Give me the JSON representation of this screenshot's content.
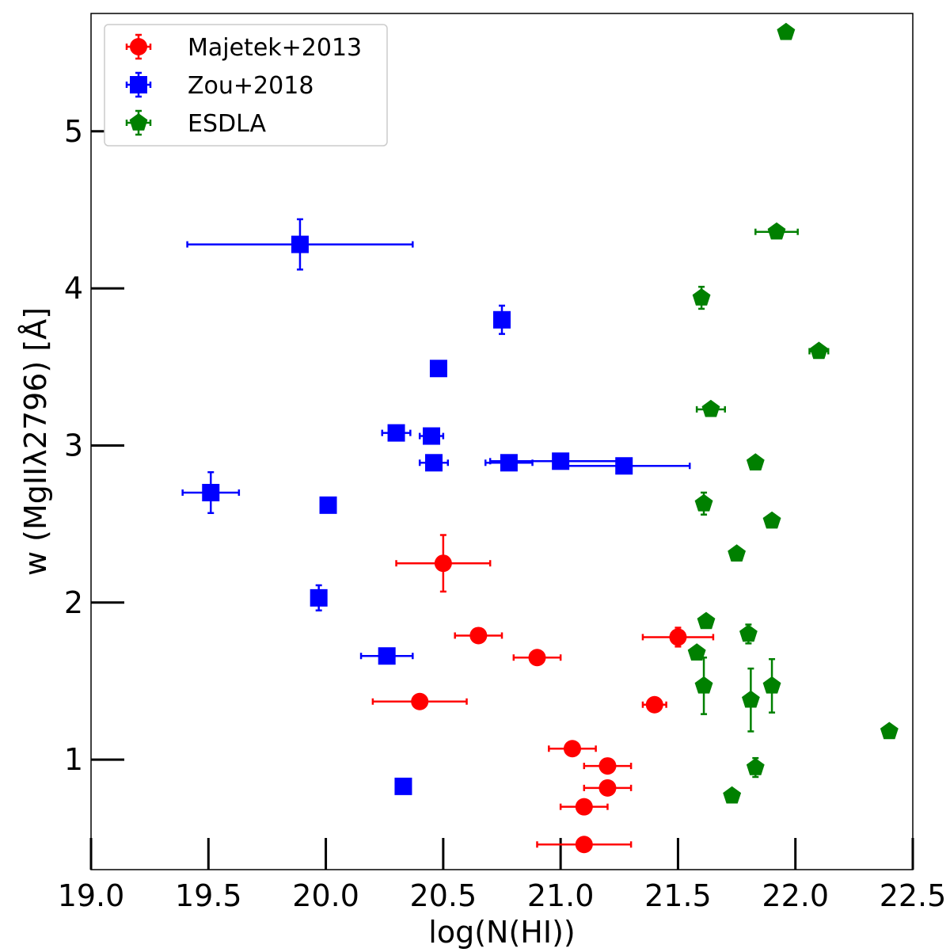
{
  "chart_data": {
    "type": "scatter",
    "title": "",
    "xlabel": "log(N(HI))",
    "ylabel": "w (MgIIλ2796) [Å]",
    "xlim": [
      19.0,
      22.5
    ],
    "ylim": [
      0.3,
      5.75
    ],
    "xticks": [
      "19.0",
      "19.5",
      "20.0",
      "20.5",
      "21.0",
      "21.5",
      "22.0",
      "22.5"
    ],
    "yticks": [
      "1",
      "2",
      "3",
      "4",
      "5"
    ],
    "grid": false,
    "legend_position": "top-left",
    "series": [
      {
        "name": "Majetek+2013",
        "color": "#ff0000",
        "marker": "circle",
        "points": [
          {
            "x": 20.5,
            "y": 2.25,
            "xerr": 0.2,
            "yerr": 0.18
          },
          {
            "x": 20.65,
            "y": 1.79,
            "xerr": 0.1,
            "yerr": 0.0
          },
          {
            "x": 20.9,
            "y": 1.65,
            "xerr": 0.1,
            "yerr": 0.04
          },
          {
            "x": 20.4,
            "y": 1.37,
            "xerr": 0.2,
            "yerr": 0.0
          },
          {
            "x": 21.5,
            "y": 1.78,
            "xerr": 0.15,
            "yerr": 0.06
          },
          {
            "x": 21.4,
            "y": 1.35,
            "xerr": 0.05,
            "yerr": 0.0
          },
          {
            "x": 21.05,
            "y": 1.07,
            "xerr": 0.1,
            "yerr": 0.0
          },
          {
            "x": 21.2,
            "y": 0.96,
            "xerr": 0.1,
            "yerr": 0.0
          },
          {
            "x": 21.2,
            "y": 0.82,
            "xerr": 0.1,
            "yerr": 0.0
          },
          {
            "x": 21.1,
            "y": 0.7,
            "xerr": 0.1,
            "yerr": 0.0
          },
          {
            "x": 21.1,
            "y": 0.46,
            "xerr": 0.2,
            "yerr": 0.0
          }
        ]
      },
      {
        "name": "Zou+2018",
        "color": "#0000ff",
        "marker": "square",
        "points": [
          {
            "x": 19.89,
            "y": 4.28,
            "xerr": 0.48,
            "yerr": 0.16
          },
          {
            "x": 20.75,
            "y": 3.8,
            "xerr": 0.0,
            "yerr": 0.09
          },
          {
            "x": 20.48,
            "y": 3.49,
            "xerr": 0.0,
            "yerr": 0.0
          },
          {
            "x": 20.3,
            "y": 3.08,
            "xerr": 0.06,
            "yerr": 0.0
          },
          {
            "x": 20.45,
            "y": 3.06,
            "xerr": 0.05,
            "yerr": 0.0
          },
          {
            "x": 20.46,
            "y": 2.89,
            "xerr": 0.06,
            "yerr": 0.0
          },
          {
            "x": 20.78,
            "y": 2.89,
            "xerr": 0.1,
            "yerr": 0.0
          },
          {
            "x": 21.0,
            "y": 2.9,
            "xerr": 0.3,
            "yerr": 0.0
          },
          {
            "x": 21.27,
            "y": 2.87,
            "xerr": 0.28,
            "yerr": 0.0
          },
          {
            "x": 19.51,
            "y": 2.7,
            "xerr": 0.12,
            "yerr": 0.13
          },
          {
            "x": 20.01,
            "y": 2.62,
            "xerr": 0.0,
            "yerr": 0.0
          },
          {
            "x": 19.97,
            "y": 2.03,
            "xerr": 0.0,
            "yerr": 0.08
          },
          {
            "x": 20.26,
            "y": 1.66,
            "xerr": 0.11,
            "yerr": 0.0
          },
          {
            "x": 20.33,
            "y": 0.83,
            "xerr": 0.0,
            "yerr": 0.0
          }
        ]
      },
      {
        "name": "ESDLA",
        "color": "#008000",
        "marker": "pentagon",
        "points": [
          {
            "x": 21.96,
            "y": 5.63,
            "xerr": 0.0,
            "yerr": 0.0
          },
          {
            "x": 21.92,
            "y": 4.36,
            "xerr": 0.09,
            "yerr": 0.0
          },
          {
            "x": 21.6,
            "y": 3.94,
            "xerr": 0.0,
            "yerr": 0.07
          },
          {
            "x": 22.1,
            "y": 3.6,
            "xerr": 0.04,
            "yerr": 0.0
          },
          {
            "x": 21.64,
            "y": 3.23,
            "xerr": 0.06,
            "yerr": 0.0
          },
          {
            "x": 21.83,
            "y": 2.89,
            "xerr": 0.0,
            "yerr": 0.0
          },
          {
            "x": 21.61,
            "y": 2.63,
            "xerr": 0.0,
            "yerr": 0.07
          },
          {
            "x": 21.9,
            "y": 2.52,
            "xerr": 0.0,
            "yerr": 0.0
          },
          {
            "x": 21.75,
            "y": 2.31,
            "xerr": 0.0,
            "yerr": 0.0
          },
          {
            "x": 21.62,
            "y": 1.88,
            "xerr": 0.0,
            "yerr": 0.0
          },
          {
            "x": 21.8,
            "y": 1.8,
            "xerr": 0.0,
            "yerr": 0.06
          },
          {
            "x": 21.58,
            "y": 1.68,
            "xerr": 0.0,
            "yerr": 0.0
          },
          {
            "x": 21.61,
            "y": 1.47,
            "xerr": 0.0,
            "yerr": 0.18
          },
          {
            "x": 21.9,
            "y": 1.47,
            "xerr": 0.0,
            "yerr": 0.17
          },
          {
            "x": 21.81,
            "y": 1.38,
            "xerr": 0.0,
            "yerr": 0.2
          },
          {
            "x": 22.4,
            "y": 1.18,
            "xerr": 0.0,
            "yerr": 0.0
          },
          {
            "x": 21.83,
            "y": 0.95,
            "xerr": 0.0,
            "yerr": 0.06
          },
          {
            "x": 21.73,
            "y": 0.77,
            "xerr": 0.0,
            "yerr": 0.0
          }
        ]
      }
    ]
  }
}
